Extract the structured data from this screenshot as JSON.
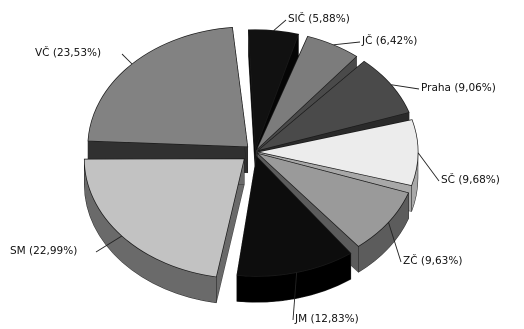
{
  "chart_data": {
    "type": "pie",
    "style": "3d-exploded",
    "slices": [
      {
        "name": "SlČ",
        "label": "SlČ (5,88%)",
        "value": 5.88,
        "color": "#111111",
        "side": "#050505"
      },
      {
        "name": "JČ",
        "label": "JČ (6,42%)",
        "value": 6.42,
        "color": "#7c7c7c",
        "side": "#4a4a4a"
      },
      {
        "name": "Praha",
        "label": "Praha (9,06%)",
        "value": 9.06,
        "color": "#4a4a4a",
        "side": "#2a2a2a"
      },
      {
        "name": "SČ",
        "label": "SČ (9,68%)",
        "value": 9.68,
        "color": "#ececec",
        "side": "#a8a8a8"
      },
      {
        "name": "ZČ",
        "label": "ZČ (9,63%)",
        "value": 9.63,
        "color": "#9a9a9a",
        "side": "#5c5c5c"
      },
      {
        "name": "JM",
        "label": "JM (12,83%)",
        "value": 12.83,
        "color": "#0d0d0d",
        "side": "#000000"
      },
      {
        "name": "SM",
        "label": "SM (22,99%)",
        "value": 22.99,
        "color": "#c2c2c2",
        "side": "#6a6a6a"
      },
      {
        "name": "VČ",
        "label": "VČ (23,53%)",
        "value": 23.53,
        "color": "#828282",
        "side": "#303030"
      }
    ]
  }
}
